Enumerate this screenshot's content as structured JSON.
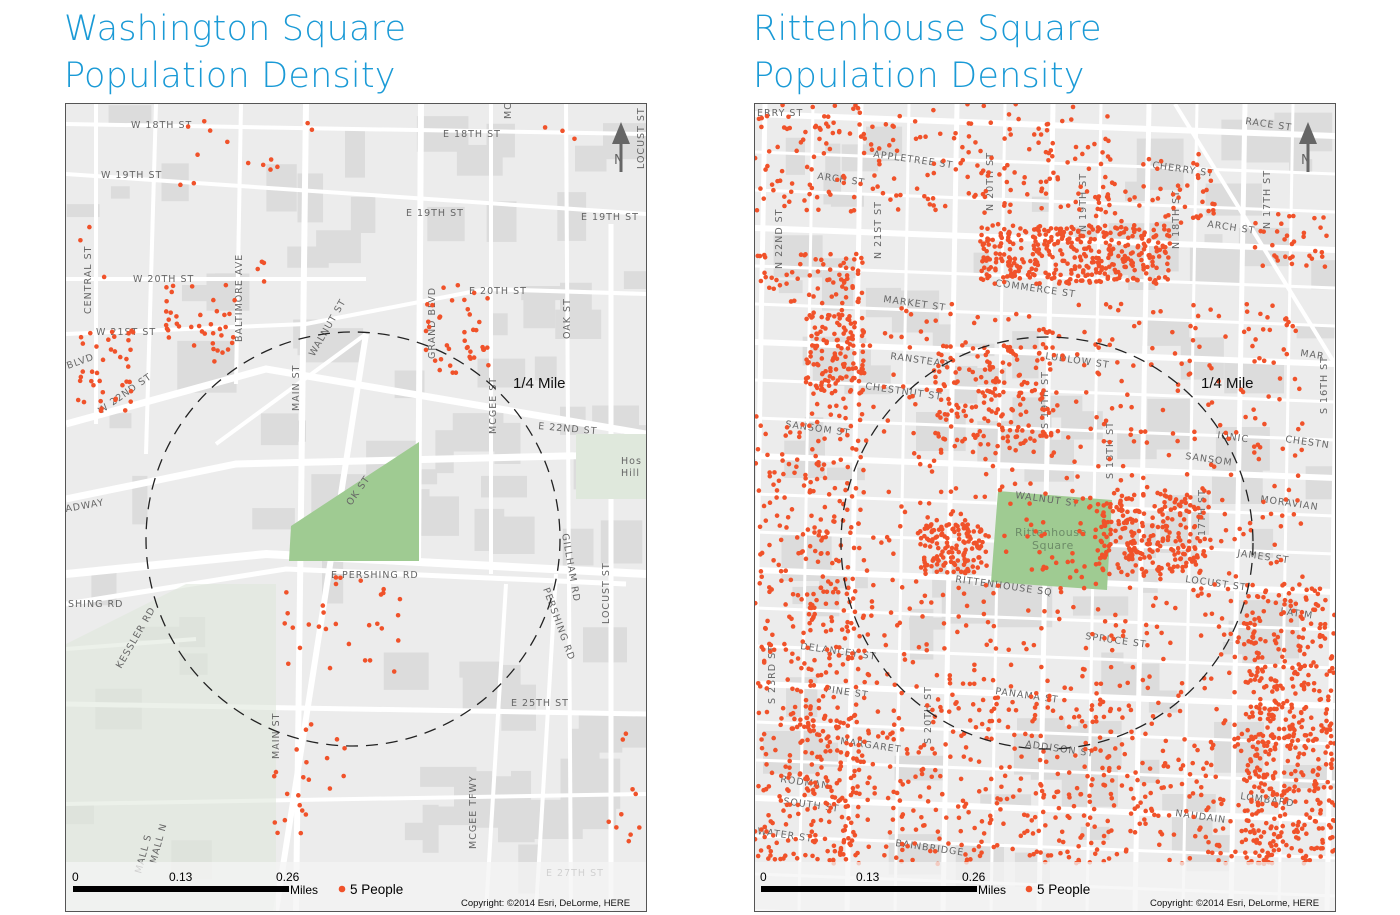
{
  "colors": {
    "title": "#1a9ad6",
    "dot": "#f0522a",
    "park": "#9fcb92",
    "road": "#ffffff",
    "land": "#ececec",
    "building": "#dcdcdc"
  },
  "left_map": {
    "title_line1": "Washington Square",
    "title_line2": "Population Density",
    "radius_label": "1/4 Mile",
    "north_label": "N",
    "north_icon": "north-arrow-icon",
    "scale": {
      "ticks": [
        "0",
        "0.13",
        "0.26"
      ],
      "unit": "Miles"
    },
    "legend_label": "5 People",
    "copyright": "Copyright: ©2014 Esri, DeLorme, HERE",
    "park_label": "",
    "streets": [
      "W 18TH ST",
      "E 18TH ST",
      "W 19TH ST",
      "E 19TH ST",
      "E 19TH ST",
      "W 20TH ST",
      "E 20TH ST",
      "W 21ST ST",
      "W 22ND ST",
      "E 22ND ST",
      "E PERSHING RD",
      "SHING RD",
      "E 25TH ST",
      "MAIN ST",
      "MAIN ST",
      "WALNUT ST",
      "GRAND BLVD",
      "MCGEE ST",
      "OAK ST",
      "LOCUST ST",
      "LOCUST ST",
      "GILLHAM RD",
      "PERSHING RD",
      "KESSLER RD",
      "BALTIMORE AVE",
      "CENTRAL ST",
      "ADWAY",
      "BLVD",
      "OK ST",
      "Hos",
      "Hill",
      "MCGEE TFWY",
      "E 27TH ST",
      "MALL S",
      "MALL N",
      "MC"
    ]
  },
  "right_map": {
    "title_line1": "Rittenhouse Square",
    "title_line2": "Population Density",
    "radius_label": "1/4 Mile",
    "north_label": "N",
    "north_icon": "north-arrow-icon",
    "scale": {
      "ticks": [
        "0",
        "0.13",
        "0.26"
      ],
      "unit": "Miles"
    },
    "legend_label": "5 People",
    "copyright": "Copyright: ©2014 Esri, DeLorme, HERE",
    "park_label_1": "Rittenhouse",
    "park_label_2": "Square",
    "streets": [
      "ERRY ST",
      "APPLETREE ST",
      "ARCH ST",
      "RACE ST",
      "CHERRY ST",
      "ARCH ST",
      "N 22ND ST",
      "N 21ST ST",
      "N 20TH ST",
      "N 19TH ST",
      "N 18TH ST",
      "N 17TH ST",
      "COMMERCE ST",
      "MARKET ST",
      "MAR",
      "RANSTEAD",
      "LUDLOW ST",
      "CHESTNUT ST",
      "CHESTN",
      "SANSOM",
      "IONIC",
      "SANSOM ST",
      "MORAVIAN",
      "WALNUT ST",
      "LOCUST ST",
      "JAMES ST",
      "LATIM",
      "DELANCEY ST",
      "PINE ST",
      "PANAMA ST",
      "LOMBARD",
      "ADDISON ST",
      "SOUTH ST",
      "NAUDAIN",
      "RODMAN",
      "BAINBRIDGE",
      "SPRUCE ST",
      "S 16TH ST",
      "S 19TH ST",
      "S 20TH ST",
      "S 23RD ST",
      "17TH ST",
      "S 18TH ST",
      "RITTENHOUSE SQ",
      "WATER ST",
      "MARGARET"
    ]
  }
}
